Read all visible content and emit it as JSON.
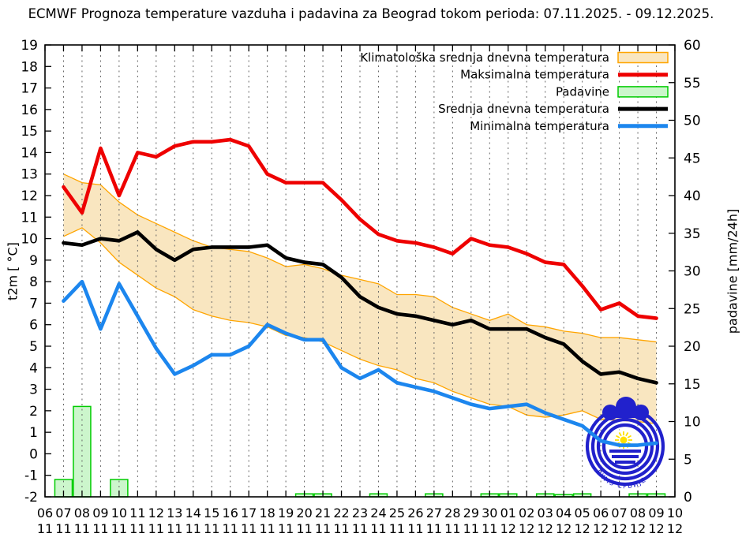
{
  "title": "ECMWF Prognoza temperature vazduha i padavina za Beograd tokom perioda: 07.11.2025. - 09.12.2025.",
  "logo": {
    "text": "РХМЗ СРБИЈЕ",
    "color": "#2121cc",
    "sun_color": "#ffe000",
    "line_color": "#2aa7e8"
  },
  "chart_data": {
    "type": "line",
    "grid": true,
    "legend_position": "top-right-inside",
    "y_left": {
      "label": "t2m [ °C]",
      "min": -2,
      "max": 19,
      "tick_step": 1
    },
    "y_right": {
      "label": "padavine [mm/24h]",
      "min": 0,
      "max": 60,
      "tick_step": 5
    },
    "x_axis": {
      "labels_day": [
        "06",
        "07",
        "08",
        "09",
        "10",
        "11",
        "12",
        "13",
        "14",
        "15",
        "16",
        "17",
        "18",
        "19",
        "20",
        "21",
        "22",
        "23",
        "24",
        "25",
        "26",
        "27",
        "28",
        "29",
        "30",
        "01",
        "02",
        "03",
        "04",
        "05",
        "06",
        "07",
        "08",
        "09",
        "10"
      ],
      "labels_month": [
        "11",
        "11",
        "11",
        "11",
        "11",
        "11",
        "11",
        "11",
        "11",
        "11",
        "11",
        "11",
        "11",
        "11",
        "11",
        "11",
        "11",
        "11",
        "11",
        "11",
        "11",
        "11",
        "11",
        "11",
        "11",
        "12",
        "12",
        "12",
        "12",
        "12",
        "12",
        "12",
        "12",
        "12",
        "12"
      ]
    },
    "dates": [
      "07.11",
      "08.11",
      "09.11",
      "10.11",
      "11.11",
      "12.11",
      "13.11",
      "14.11",
      "15.11",
      "16.11",
      "17.11",
      "18.11",
      "19.11",
      "20.11",
      "21.11",
      "22.11",
      "23.11",
      "24.11",
      "25.11",
      "26.11",
      "27.11",
      "28.11",
      "29.11",
      "30.11",
      "01.12",
      "02.12",
      "03.12",
      "04.12",
      "05.12",
      "06.12",
      "07.12",
      "08.12",
      "09.12"
    ],
    "series": [
      {
        "name": "Klimatološka srednja dnevna temperatura",
        "type": "band",
        "axis": "left",
        "color": "#ffa500",
        "fill": "#f9e6c0",
        "upper": [
          13.0,
          12.6,
          12.5,
          11.7,
          11.1,
          10.7,
          10.3,
          9.9,
          9.6,
          9.5,
          9.4,
          9.1,
          8.7,
          8.8,
          8.6,
          8.3,
          8.1,
          7.9,
          7.4,
          7.4,
          7.3,
          6.8,
          6.5,
          6.2,
          6.5,
          6.0,
          5.9,
          5.7,
          5.6,
          5.4,
          5.4,
          5.3,
          5.2
        ],
        "lower": [
          10.1,
          10.5,
          9.8,
          8.9,
          8.3,
          7.7,
          7.3,
          6.7,
          6.4,
          6.2,
          6.1,
          5.9,
          5.5,
          5.4,
          5.2,
          4.8,
          4.4,
          4.1,
          3.9,
          3.5,
          3.3,
          2.9,
          2.6,
          2.3,
          2.2,
          1.8,
          1.7,
          1.8,
          2.0,
          1.6,
          1.55,
          1.5,
          1.4
        ]
      },
      {
        "name": "Maksimalna temperatura",
        "type": "line",
        "axis": "left",
        "color": "#ee0000",
        "values": [
          12.4,
          11.2,
          14.2,
          12.0,
          14.0,
          13.8,
          14.3,
          14.5,
          14.5,
          14.6,
          14.3,
          13.0,
          12.6,
          12.6,
          12.6,
          11.8,
          10.9,
          10.2,
          9.9,
          9.8,
          9.6,
          9.3,
          10.0,
          9.7,
          9.6,
          9.3,
          8.9,
          8.8,
          7.8,
          6.7,
          7.0,
          6.4,
          6.3
        ]
      },
      {
        "name": "Padavine",
        "type": "bar",
        "axis": "right",
        "color": "#00cc00",
        "fill": "#ccf6cc",
        "values": [
          2.3,
          12.0,
          0,
          2.3,
          0,
          0,
          0,
          0,
          0,
          0,
          0,
          0,
          0,
          0.4,
          0.4,
          0,
          0,
          0.4,
          0,
          0,
          0.4,
          0,
          0,
          0.4,
          0.4,
          0,
          0.4,
          0.3,
          0.4,
          0,
          0,
          0.4,
          0.4
        ]
      },
      {
        "name": "Srednja dnevna temperatura",
        "type": "line",
        "axis": "left",
        "color": "#000000",
        "values": [
          9.8,
          9.7,
          10.0,
          9.9,
          10.3,
          9.5,
          9.0,
          9.5,
          9.6,
          9.6,
          9.6,
          9.7,
          9.1,
          8.9,
          8.8,
          8.2,
          7.3,
          6.8,
          6.5,
          6.4,
          6.2,
          6.0,
          6.2,
          5.8,
          5.8,
          5.8,
          5.4,
          5.1,
          4.3,
          3.7,
          3.8,
          3.5,
          3.3
        ]
      },
      {
        "name": "Minimalna temperatura",
        "type": "line",
        "axis": "left",
        "color": "#1c86ee",
        "values": [
          7.1,
          8.0,
          5.8,
          7.9,
          6.4,
          4.9,
          3.7,
          4.1,
          4.6,
          4.6,
          5.0,
          6.0,
          5.6,
          5.3,
          5.3,
          4.0,
          3.5,
          3.9,
          3.3,
          3.1,
          2.9,
          2.6,
          2.3,
          2.1,
          2.2,
          2.3,
          1.9,
          1.6,
          1.3,
          0.6,
          0.4,
          0.4,
          0.5
        ]
      }
    ]
  }
}
